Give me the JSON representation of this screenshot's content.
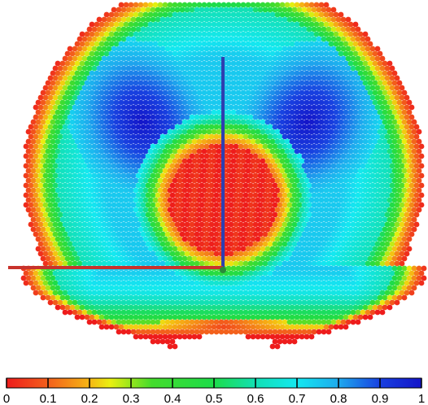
{
  "chart_data": {
    "type": "heatmap",
    "title": "",
    "xlabel": "",
    "ylabel": "",
    "colorbar": {
      "range": [
        0,
        1
      ],
      "orientation": "horizontal",
      "placement": "bottom",
      "tick_labels": [
        "0",
        "0.1",
        "0.2",
        "0.3",
        "0.4",
        "0.5",
        "0.6",
        "0.7",
        "0.8",
        "0.9",
        "1"
      ],
      "tick_values": [
        0,
        0.1,
        0.2,
        0.3,
        0.4,
        0.5,
        0.6,
        0.7,
        0.8,
        0.9,
        1
      ],
      "colormap": [
        {
          "value": 0.0,
          "color": "#ee1c1c"
        },
        {
          "value": 0.1,
          "color": "#f3601c"
        },
        {
          "value": 0.2,
          "color": "#f6b614"
        },
        {
          "value": 0.25,
          "color": "#e9f010"
        },
        {
          "value": 0.35,
          "color": "#44dc2c"
        },
        {
          "value": 0.5,
          "color": "#1ddc4a"
        },
        {
          "value": 0.6,
          "color": "#12e0b4"
        },
        {
          "value": 0.7,
          "color": "#14e8f0"
        },
        {
          "value": 0.8,
          "color": "#1eaaee"
        },
        {
          "value": 0.9,
          "color": "#1840e0"
        },
        {
          "value": 1.0,
          "color": "#1414c8"
        }
      ]
    },
    "grid": false,
    "legend": "none",
    "axes_marks": [
      {
        "name": "vertical-axis-line",
        "color": "#2f3fb0"
      },
      {
        "name": "horizontal-axis-line",
        "color": "#c8322c"
      }
    ]
  }
}
